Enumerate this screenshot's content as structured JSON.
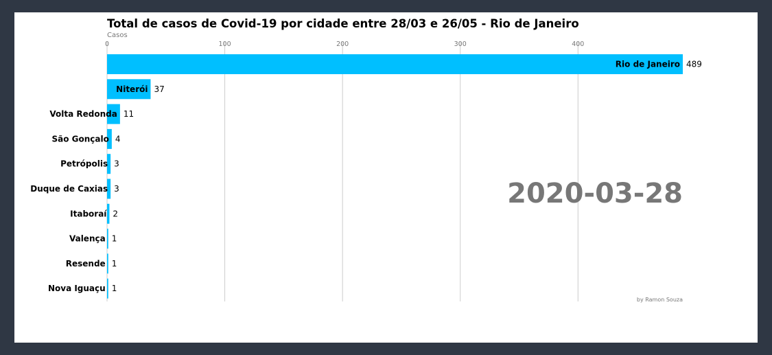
{
  "chart_data": {
    "type": "bar",
    "orientation": "horizontal",
    "title": "Total de casos de Covid-19 por cidade entre 28/03 e 26/05 - Rio de Janeiro",
    "xlabel": "Casos",
    "xlim": [
      0,
      489
    ],
    "xticks": [
      0,
      100,
      200,
      300,
      400
    ],
    "grid": true,
    "categories": [
      "Rio de Janeiro",
      "Niterói",
      "Volta Redonda",
      "São Gonçalo",
      "Petrópolis",
      "Duque de Caxias",
      "Itaboraí",
      "Valença",
      "Resende",
      "Nova Iguaçu"
    ],
    "values": [
      489,
      37,
      11,
      4,
      3,
      3,
      2,
      1,
      1,
      1
    ],
    "bar_color": "#00bfff",
    "date_label": "2020-03-28",
    "credit": "by Ramon Souza"
  }
}
